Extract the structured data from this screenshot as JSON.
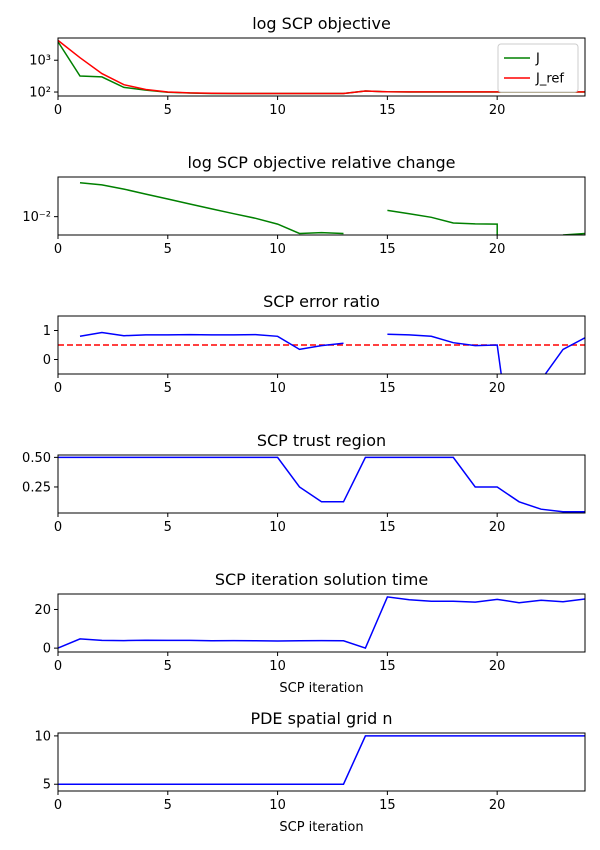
{
  "chart_data": [
    {
      "type": "line",
      "title": "log SCP objective",
      "xlabel": "",
      "yscale": "log",
      "xlim": [
        0,
        24
      ],
      "ylim": [
        75,
        5000
      ],
      "xticks": [
        0,
        5,
        10,
        15,
        20
      ],
      "yticks": [
        {
          "v": 100,
          "label": "10²"
        },
        {
          "v": 1000,
          "label": "10³"
        }
      ],
      "legend": "top-right",
      "series": [
        {
          "name": "J",
          "color": "#008000",
          "x": [
            0,
            1,
            2,
            3,
            4,
            5,
            6,
            7,
            8,
            9,
            10,
            11,
            12,
            13,
            14,
            15,
            16,
            17,
            18,
            19,
            20,
            21,
            22,
            23,
            24
          ],
          "y": [
            3800,
            320,
            300,
            140,
            115,
            98,
            93,
            90,
            90,
            90,
            90,
            90,
            90,
            90,
            108,
            102,
            100,
            100,
            100,
            100,
            100,
            100,
            100,
            100,
            100
          ]
        },
        {
          "name": "J_ref",
          "color": "#ff0000",
          "x": [
            0,
            1,
            2,
            3,
            4,
            5,
            6,
            7,
            8,
            9,
            10,
            11,
            12,
            13,
            14,
            15,
            16,
            17,
            18,
            19,
            20,
            21,
            22,
            23,
            24
          ],
          "y": [
            4200,
            1200,
            380,
            170,
            120,
            100,
            94,
            91,
            90,
            90,
            90,
            90,
            90,
            90,
            108,
            102,
            101,
            101,
            101,
            101,
            101,
            101,
            101,
            101,
            101
          ]
        }
      ]
    },
    {
      "type": "line",
      "title": "log SCP objective relative change",
      "xlabel": "",
      "yscale": "log",
      "xlim": [
        0,
        24
      ],
      "ylim": [
        0.0025,
        0.2
      ],
      "xticks": [
        0,
        5,
        10,
        15,
        20
      ],
      "yticks": [
        {
          "v": 0.01,
          "label": "10⁻²"
        }
      ],
      "series": [
        {
          "name": "",
          "color": "#008000",
          "segments": [
            {
              "x": [
                1,
                2,
                3,
                4,
                5,
                6,
                7,
                8,
                9,
                10,
                11,
                12,
                13
              ],
              "y": [
                0.13,
                0.11,
                0.08,
                0.055,
                0.038,
                0.026,
                0.018,
                0.0125,
                0.0088,
                0.0057,
                0.0028,
                0.003,
                0.0028
              ]
            },
            {
              "x": [
                15,
                16,
                17,
                18,
                19,
                20,
                20
              ],
              "y": [
                0.016,
                0.0125,
                0.0095,
                0.0062,
                0.0058,
                0.0057,
                0.0025
              ]
            },
            {
              "x": [
                23,
                24
              ],
              "y": [
                0.0025,
                0.0028
              ]
            }
          ]
        }
      ]
    },
    {
      "type": "line",
      "title": "SCP error ratio",
      "xlabel": "",
      "yscale": "linear",
      "xlim": [
        0,
        24
      ],
      "ylim": [
        -0.5,
        1.5
      ],
      "xticks": [
        0,
        5,
        10,
        15,
        20
      ],
      "yticks": [
        {
          "v": 0,
          "label": "0"
        },
        {
          "v": 1,
          "label": "1"
        }
      ],
      "hline": {
        "y": 0.5,
        "color": "#ff0000"
      },
      "series": [
        {
          "name": "",
          "color": "#0000ff",
          "segments": [
            {
              "x": [
                1,
                2,
                3,
                4,
                5,
                6,
                7,
                8,
                9,
                10,
                11,
                12,
                13
              ],
              "y": [
                0.8,
                0.93,
                0.82,
                0.85,
                0.85,
                0.86,
                0.85,
                0.85,
                0.86,
                0.8,
                0.35,
                0.48,
                0.56
              ]
            },
            {
              "x": [
                15,
                16,
                17,
                18,
                19,
                20,
                20.2
              ],
              "y": [
                0.87,
                0.85,
                0.8,
                0.58,
                0.48,
                0.5,
                -0.6
              ]
            },
            {
              "x": [
                22.1,
                23,
                24
              ],
              "y": [
                -0.6,
                0.35,
                0.75
              ]
            }
          ]
        }
      ]
    },
    {
      "type": "line",
      "title": "SCP trust region",
      "xlabel": "",
      "yscale": "linear",
      "xlim": [
        0,
        24
      ],
      "ylim": [
        0.03,
        0.52
      ],
      "xticks": [
        0,
        5,
        10,
        15,
        20
      ],
      "yticks": [
        {
          "v": 0.25,
          "label": "0.25"
        },
        {
          "v": 0.5,
          "label": "0.50"
        }
      ],
      "series": [
        {
          "name": "",
          "color": "#0000ff",
          "x": [
            0,
            1,
            2,
            3,
            4,
            5,
            6,
            7,
            8,
            9,
            10,
            11,
            12,
            13,
            14,
            15,
            16,
            17,
            18,
            19,
            20,
            21,
            22,
            23,
            24
          ],
          "y": [
            0.5,
            0.5,
            0.5,
            0.5,
            0.5,
            0.5,
            0.5,
            0.5,
            0.5,
            0.5,
            0.5,
            0.25,
            0.125,
            0.125,
            0.5,
            0.5,
            0.5,
            0.5,
            0.5,
            0.25,
            0.25,
            0.125,
            0.0625,
            0.04,
            0.04
          ]
        }
      ]
    },
    {
      "type": "line",
      "title": "SCP iteration solution time",
      "xlabel": "SCP iteration",
      "yscale": "linear",
      "xlim": [
        0,
        24
      ],
      "ylim": [
        -2,
        28
      ],
      "xticks": [
        0,
        5,
        10,
        15,
        20
      ],
      "yticks": [
        {
          "v": 0,
          "label": "0"
        },
        {
          "v": 20,
          "label": "20"
        }
      ],
      "series": [
        {
          "name": "",
          "color": "#0000ff",
          "x": [
            0,
            1,
            2,
            3,
            4,
            5,
            6,
            7,
            8,
            9,
            10,
            11,
            12,
            13,
            14,
            15,
            16,
            17,
            18,
            19,
            20,
            21,
            22,
            23,
            24
          ],
          "y": [
            0,
            4.8,
            4.0,
            3.9,
            4.1,
            4.0,
            4.0,
            3.8,
            3.9,
            3.8,
            3.7,
            3.8,
            3.9,
            3.8,
            0,
            26.5,
            25.0,
            24.2,
            24.2,
            23.8,
            25.2,
            23.5,
            24.8,
            24.0,
            25.4
          ]
        }
      ]
    },
    {
      "type": "line",
      "title": "PDE spatial grid n",
      "xlabel": "SCP iteration",
      "yscale": "linear",
      "xlim": [
        0,
        24
      ],
      "ylim": [
        4.3,
        10.3
      ],
      "xticks": [
        0,
        5,
        10,
        15,
        20
      ],
      "yticks": [
        {
          "v": 5,
          "label": "5"
        },
        {
          "v": 10,
          "label": "10"
        }
      ],
      "series": [
        {
          "name": "",
          "color": "#0000ff",
          "x": [
            0,
            1,
            2,
            3,
            4,
            5,
            6,
            7,
            8,
            9,
            10,
            11,
            12,
            13,
            14,
            15,
            16,
            17,
            18,
            19,
            20,
            21,
            22,
            23,
            24
          ],
          "y": [
            5,
            5,
            5,
            5,
            5,
            5,
            5,
            5,
            5,
            5,
            5,
            5,
            5,
            5,
            10,
            10,
            10,
            10,
            10,
            10,
            10,
            10,
            10,
            10,
            10
          ]
        }
      ]
    }
  ]
}
